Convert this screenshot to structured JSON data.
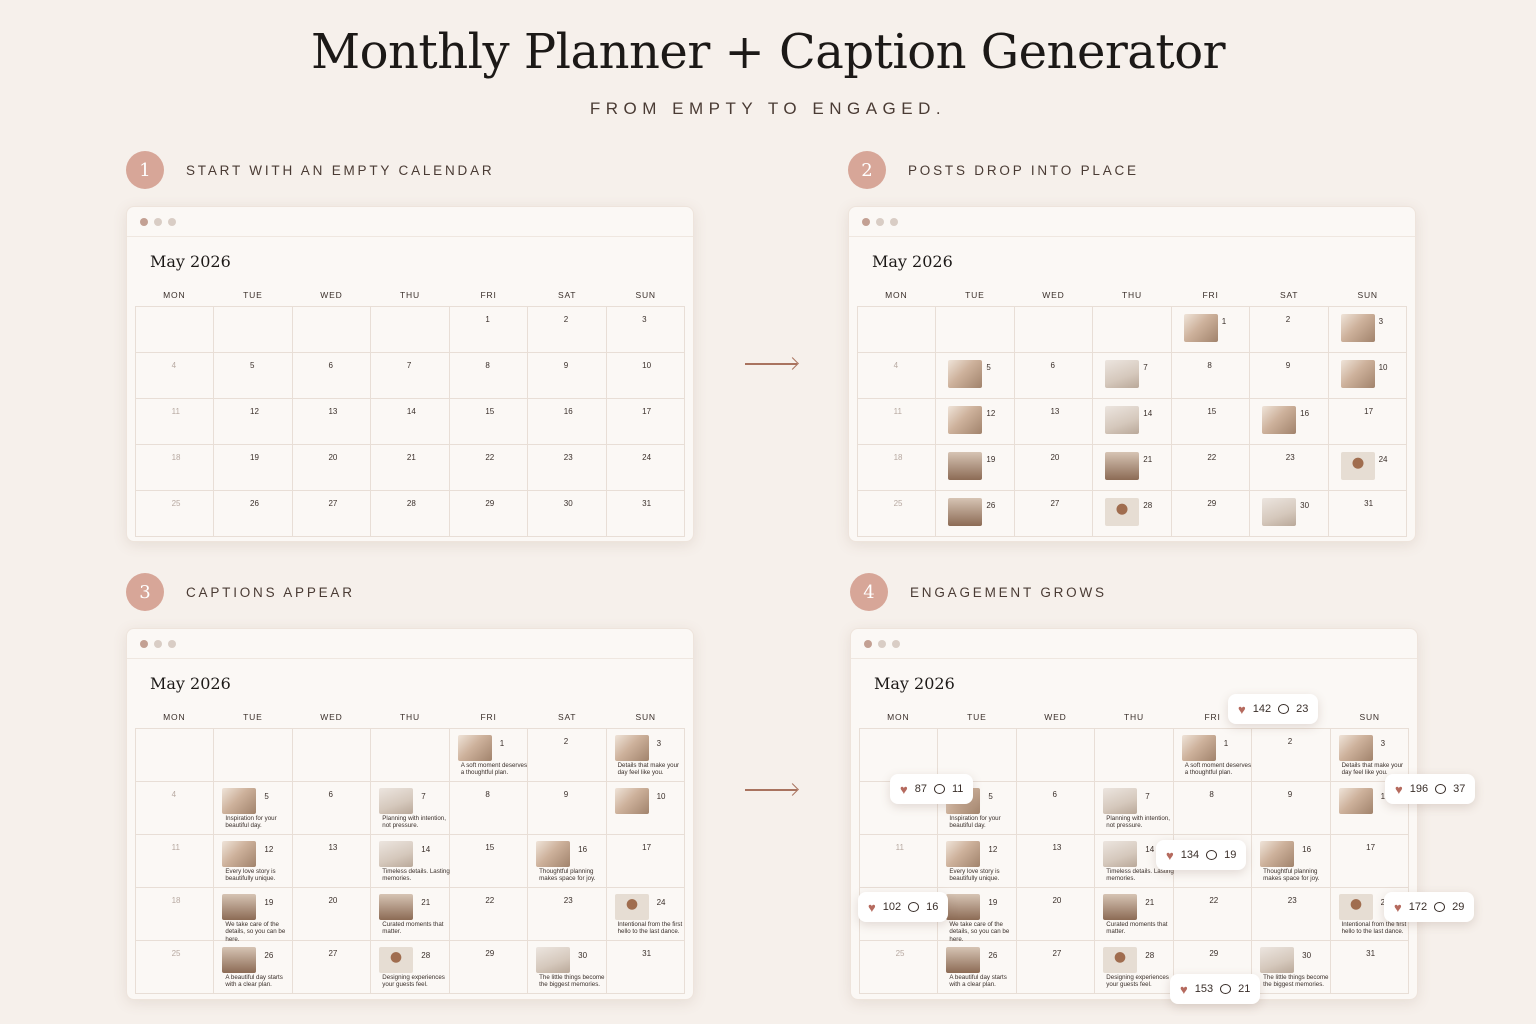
{
  "header": {
    "title": "Monthly Planner + Caption Generator",
    "subtitle": "FROM EMPTY TO ENGAGED."
  },
  "steps": [
    {
      "num": "1",
      "label": "START WITH AN EMPTY CALENDAR"
    },
    {
      "num": "2",
      "label": "POSTS DROP INTO PLACE"
    },
    {
      "num": "3",
      "label": "CAPTIONS APPEAR"
    },
    {
      "num": "4",
      "label": "ENGAGEMENT GROWS"
    }
  ],
  "calendar": {
    "month": "May 2026",
    "weekdays": [
      "MON",
      "TUE",
      "WED",
      "THU",
      "FRI",
      "SAT",
      "SUN"
    ],
    "days": [
      "",
      "",
      "",
      "",
      "1",
      "2",
      "3",
      "4",
      "5",
      "6",
      "7",
      "8",
      "9",
      "10",
      "11",
      "12",
      "13",
      "14",
      "15",
      "16",
      "17",
      "18",
      "19",
      "20",
      "21",
      "22",
      "23",
      "24",
      "25",
      "26",
      "27",
      "28",
      "29",
      "30",
      "31"
    ]
  },
  "captions": {
    "1": "A soft moment deserves a thoughtful plan.",
    "3": "Details that make your day feel like you.",
    "5": "Inspiration for your beautiful day.",
    "7": "Planning with intention, not pressure.",
    "12": "Every love story is beautifully unique.",
    "14": "Timeless details. Lasting memories.",
    "16": "Thoughtful planning makes space for joy.",
    "19": "We take care of the details, so you can be here.",
    "21": "Curated moments that matter.",
    "24": "Intentional from the first hello to the last dance.",
    "26": "A beautiful day starts with a clear plan.",
    "28": "Designing experiences your guests feel.",
    "30": "The little things become the biggest memories."
  },
  "engagement": [
    {
      "likes": "142",
      "comments": "23"
    },
    {
      "likes": "87",
      "comments": "11"
    },
    {
      "likes": "196",
      "comments": "37"
    },
    {
      "likes": "134",
      "comments": "19"
    },
    {
      "likes": "102",
      "comments": "16"
    },
    {
      "likes": "172",
      "comments": "29"
    },
    {
      "likes": "153",
      "comments": "21"
    }
  ]
}
